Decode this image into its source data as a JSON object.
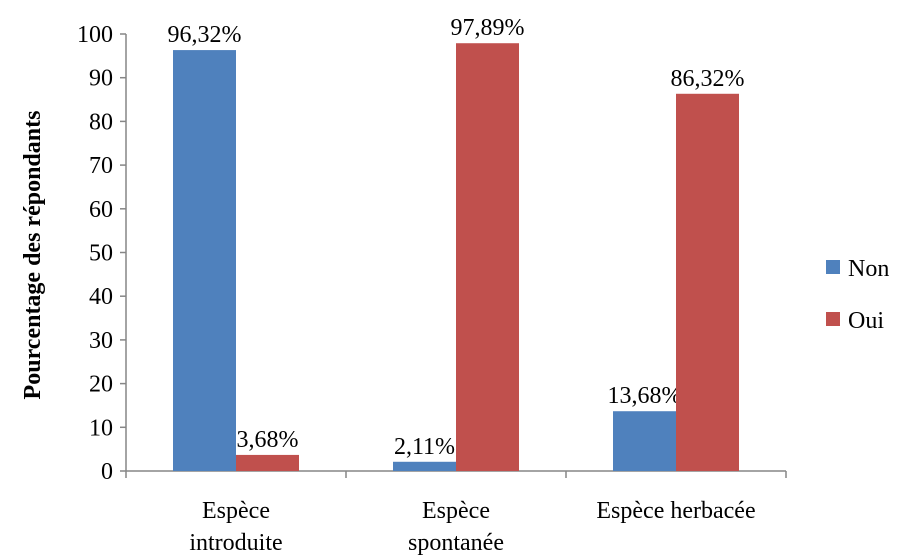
{
  "chart_data": {
    "type": "bar",
    "title": "",
    "xlabel": "",
    "ylabel": "Pourcentage des répondants",
    "ylim": [
      0,
      100
    ],
    "yticks": [
      0,
      10,
      20,
      30,
      40,
      50,
      60,
      70,
      80,
      90,
      100
    ],
    "categories": [
      [
        "Espèce",
        "introduite"
      ],
      [
        "Espèce",
        "spontanée"
      ],
      [
        "Espèce herbacée"
      ]
    ],
    "series": [
      {
        "name": "Non",
        "color": "#4f81bd",
        "values": [
          96.32,
          2.11,
          13.68
        ],
        "labels": [
          "96,32%",
          "2,11%",
          "13,68%"
        ]
      },
      {
        "name": "Oui",
        "color": "#c0504d",
        "values": [
          3.68,
          97.89,
          86.32
        ],
        "labels": [
          "3,68%",
          "97,89%",
          "86,32%"
        ]
      }
    ],
    "grid": false,
    "legend": "right"
  }
}
